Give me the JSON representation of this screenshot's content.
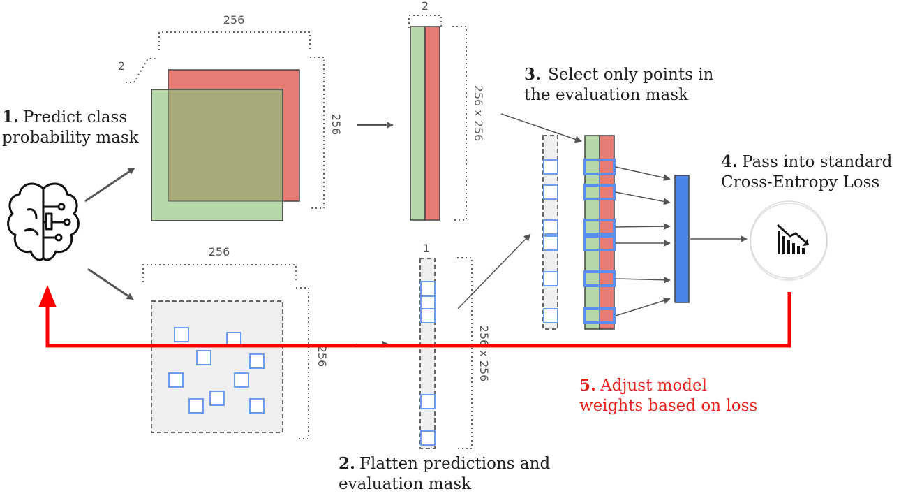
{
  "steps": [
    {
      "number": "1.",
      "text_line1": "Predict class",
      "text_line2": "probability mask"
    },
    {
      "number": "2.",
      "text_line1": "Flatten predictions and",
      "text_line2": "evaluation mask"
    },
    {
      "number": "3.",
      "text_line1": "Select only points in",
      "text_line2": "the evaluation mask"
    },
    {
      "number": "4.",
      "text_line1": "Pass into standard",
      "text_line2": "Cross-Entropy Loss"
    },
    {
      "number": "5.",
      "text_line1": "Adjust model",
      "text_line2": "weights based on loss"
    }
  ],
  "dims": {
    "pred_width": "256",
    "pred_depth": "2",
    "pred_height": "256",
    "flat_pred_width": "2",
    "flat_pred_length": "256 x 256",
    "mask_width": "256",
    "mask_height": "256",
    "flat_mask_width": "1",
    "flat_mask_length": "256 x 256"
  },
  "icons": {
    "model": "brain-circuit-icon",
    "loss": "chart-decreasing-icon"
  },
  "colors": {
    "green_channel": "#b6d7a8",
    "red_channel": "#e67c73",
    "overlap": "#a8aa7a",
    "mask_bg": "#efefef",
    "point_border": "#6d9eeb",
    "selection": "#5b8def",
    "loss_bar": "#4a86e8",
    "feedback": "#ff0000",
    "arrow": "#555555"
  }
}
